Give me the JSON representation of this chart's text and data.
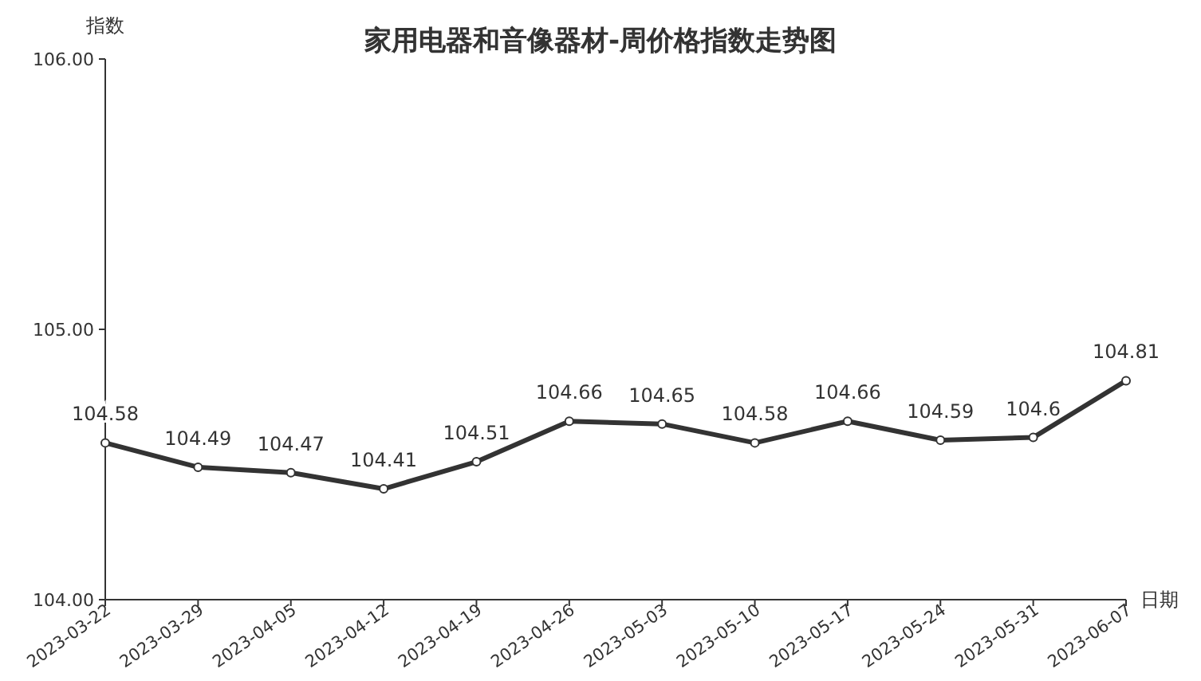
{
  "chart_data": {
    "type": "line",
    "title": "家用电器和音像器材-周价格指数走势图",
    "xlabel": "日期",
    "ylabel": "指数",
    "categories": [
      "2023-03-22",
      "2023-03-29",
      "2023-04-05",
      "2023-04-12",
      "2023-04-19",
      "2023-04-26",
      "2023-05-03",
      "2023-05-10",
      "2023-05-17",
      "2023-05-24",
      "2023-05-31",
      "2023-06-07"
    ],
    "series": [
      {
        "color": "#333333",
        "values": [
          104.58,
          104.49,
          104.47,
          104.41,
          104.51,
          104.66,
          104.65,
          104.58,
          104.66,
          104.59,
          104.6,
          104.81
        ]
      }
    ],
    "ylim": [
      104,
      106
    ],
    "yticks": [
      {
        "value": 104,
        "label": "104.00"
      },
      {
        "value": 105,
        "label": "105.00"
      },
      {
        "value": 106,
        "label": "106.00"
      }
    ],
    "marker": "circle",
    "line_style": "solid",
    "data_labels": true,
    "grid": false
  }
}
